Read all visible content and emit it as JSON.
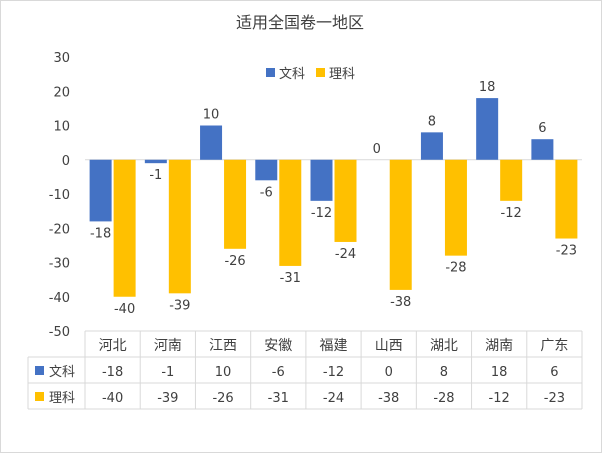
{
  "chart_data": {
    "type": "bar",
    "title": "适用全国卷一地区",
    "categories": [
      "河北",
      "河南",
      "江西",
      "安徽",
      "福建",
      "山西",
      "湖北",
      "湖南",
      "广东"
    ],
    "series": [
      {
        "name": "文科",
        "color": "#4472C4",
        "values": [
          -18,
          -1,
          10,
          -6,
          -12,
          0,
          8,
          18,
          6
        ]
      },
      {
        "name": "理科",
        "color": "#FFC000",
        "values": [
          -40,
          -39,
          -26,
          -31,
          -24,
          -38,
          -28,
          -12,
          -23
        ]
      }
    ],
    "ylim": [
      -50,
      30
    ],
    "yticks": [
      30,
      20,
      10,
      0,
      -10,
      -20,
      -30,
      -40,
      -50
    ],
    "legend": "top-right",
    "grid": false,
    "data_table": true
  }
}
